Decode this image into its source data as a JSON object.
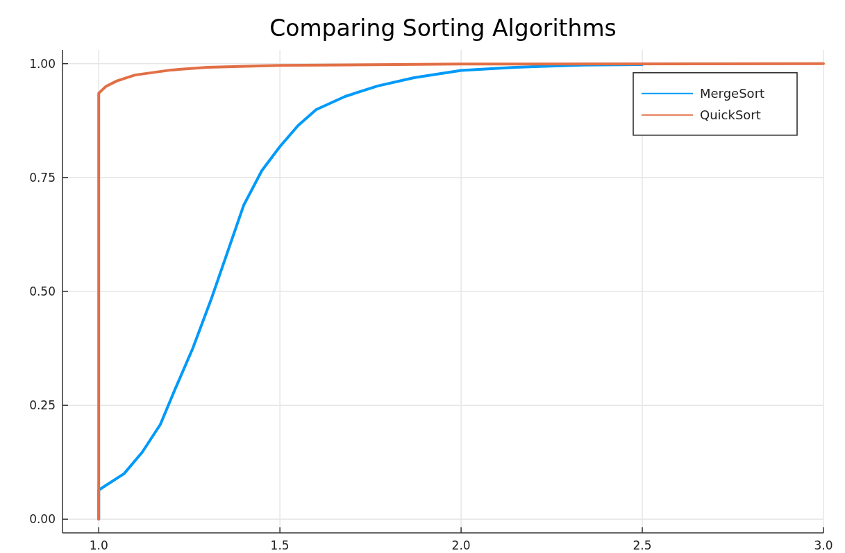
{
  "chart_data": {
    "type": "line",
    "title": "Comparing Sorting Algorithms",
    "xlim": [
      0.9,
      3.0
    ],
    "xticks": [
      {
        "value": 1,
        "label": "1.0"
      },
      {
        "value": 1.5,
        "label": "1.5"
      },
      {
        "value": 2,
        "label": "2.0"
      },
      {
        "value": 2.5,
        "label": "2.5"
      },
      {
        "value": 3,
        "label": "3.0"
      }
    ],
    "ylim": [
      -0.03,
      1.03
    ],
    "yticks": [
      {
        "value": 0,
        "label": "0.00"
      },
      {
        "value": 0.25,
        "label": "0.25"
      },
      {
        "value": 0.5,
        "label": "0.50"
      },
      {
        "value": 0.75,
        "label": "0.75"
      },
      {
        "value": 1,
        "label": "1.00"
      }
    ],
    "grid": true,
    "legend": "top right",
    "line_style": "solid",
    "marker": "none",
    "series": [
      {
        "name": "MergeSort",
        "color": "#009af9",
        "x": [
          1.0,
          1.0,
          1.07,
          1.12,
          1.17,
          1.21,
          1.26,
          1.31,
          1.36,
          1.4,
          1.45,
          1.5,
          1.55,
          1.6,
          1.68,
          1.77,
          1.87,
          2.0,
          2.15,
          2.34,
          2.5
        ],
        "values": [
          0,
          0.064,
          0.1,
          0.147,
          0.208,
          0.284,
          0.376,
          0.482,
          0.597,
          0.689,
          0.765,
          0.818,
          0.864,
          0.899,
          0.928,
          0.951,
          0.969,
          0.985,
          0.992,
          0.997,
          0.998
        ]
      },
      {
        "name": "QuickSort",
        "color": "#e26f46",
        "x": [
          1.0,
          1.0,
          1.02,
          1.05,
          1.1,
          1.2,
          1.3,
          1.5,
          2.0,
          3.0
        ],
        "values": [
          0,
          0.935,
          0.95,
          0.962,
          0.975,
          0.986,
          0.992,
          0.996,
          0.999,
          1.0
        ]
      }
    ]
  }
}
